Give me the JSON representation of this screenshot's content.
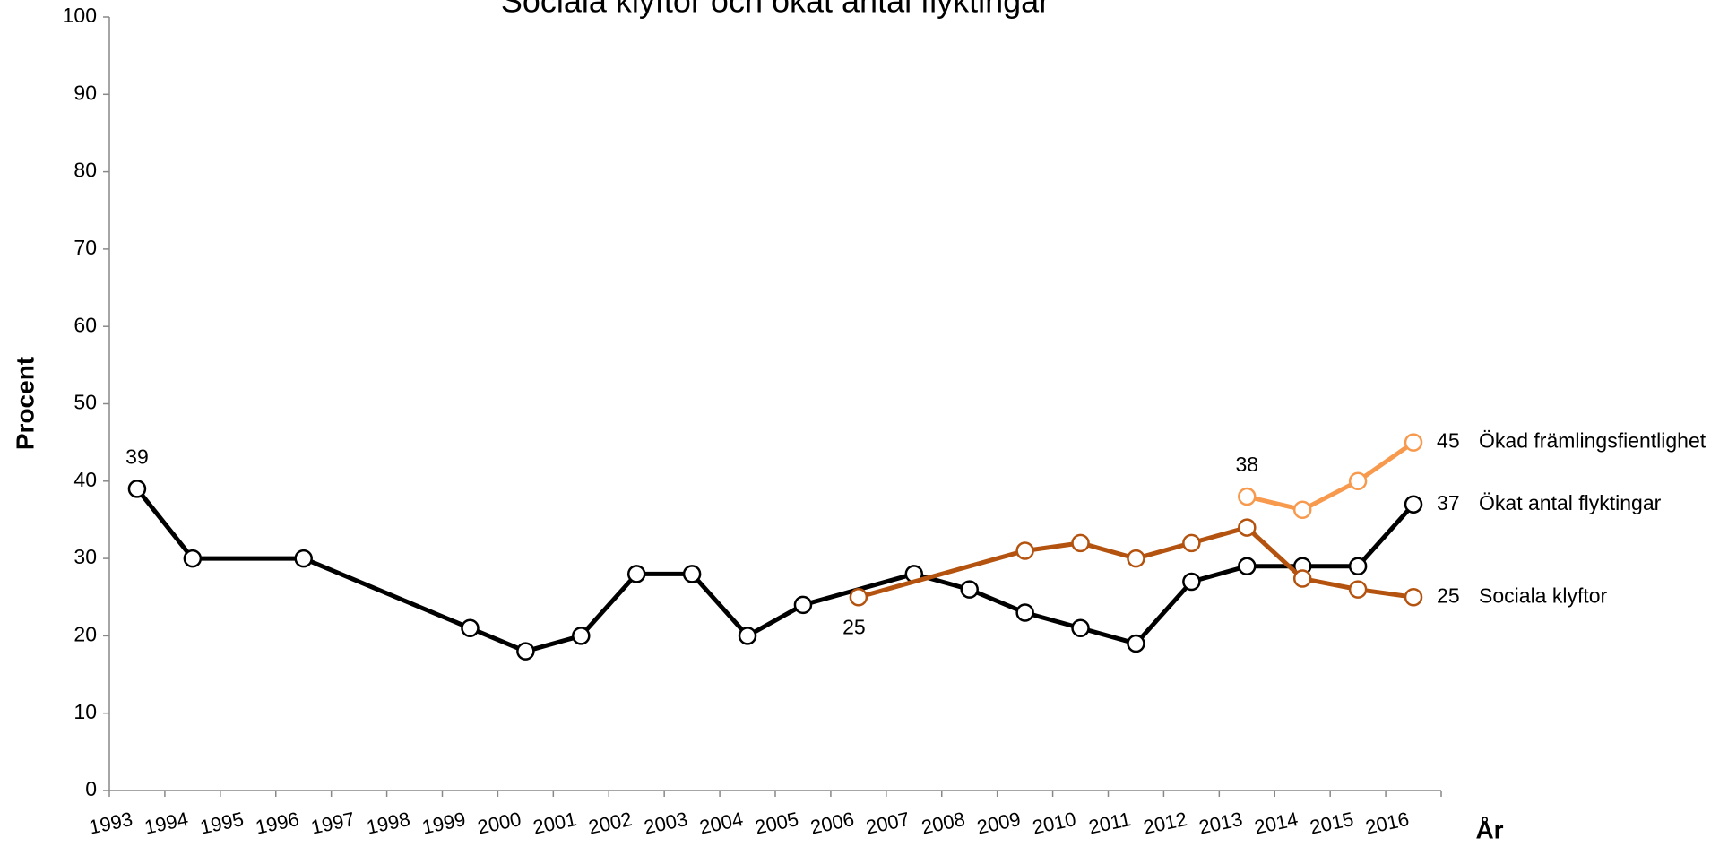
{
  "chart_data": {
    "type": "line",
    "title": "Sociala klyftor och ökat antal flyktingar",
    "y_label": "Procent",
    "x_label": "År",
    "categories": [
      "1993",
      "1994",
      "1995",
      "1996",
      "1997",
      "1998",
      "1999",
      "2000",
      "2001",
      "2002",
      "2003",
      "2004",
      "2005",
      "2006",
      "2007",
      "2008",
      "2009",
      "2010",
      "2011",
      "2012",
      "2013",
      "2014",
      "2015",
      "2016"
    ],
    "connect_gaps": true,
    "ylim": [
      0,
      100
    ],
    "yticks": [
      0,
      10,
      20,
      30,
      40,
      50,
      60,
      70,
      80,
      90,
      100
    ],
    "grid": false,
    "series": [
      {
        "name": "Ökad främlingsfientlighet",
        "color": "#f79a4e",
        "marker_fill": "#ffffff",
        "values": [
          null,
          null,
          null,
          null,
          null,
          null,
          null,
          null,
          null,
          null,
          null,
          null,
          null,
          null,
          null,
          null,
          null,
          null,
          null,
          null,
          38,
          36.3,
          40,
          45
        ],
        "value_labels": [
          null,
          null,
          null,
          null,
          null,
          null,
          null,
          null,
          null,
          null,
          null,
          null,
          null,
          null,
          null,
          null,
          null,
          null,
          null,
          null,
          "38",
          null,
          null,
          "45"
        ]
      },
      {
        "name": "Ökat antal flyktingar",
        "color": "#000000",
        "marker_fill": "#ffffff",
        "values": [
          39,
          30,
          null,
          30,
          null,
          null,
          21,
          18,
          20,
          28,
          28,
          20,
          24,
          null,
          28,
          26,
          23,
          21,
          19,
          27,
          29,
          29,
          29,
          37
        ],
        "value_labels": [
          "39",
          null,
          null,
          null,
          null,
          null,
          null,
          null,
          null,
          null,
          null,
          null,
          null,
          null,
          null,
          null,
          null,
          null,
          null,
          null,
          null,
          null,
          null,
          "37"
        ]
      },
      {
        "name": "Sociala klyftor",
        "color": "#b4530f",
        "marker_fill": "#ffffff",
        "values": [
          null,
          null,
          null,
          null,
          null,
          null,
          null,
          null,
          null,
          null,
          null,
          null,
          null,
          25,
          null,
          null,
          31,
          32,
          30,
          32,
          34,
          27.4,
          26,
          25
        ],
        "value_labels": [
          null,
          null,
          null,
          null,
          null,
          null,
          null,
          null,
          null,
          null,
          null,
          null,
          null,
          "25",
          null,
          null,
          null,
          null,
          null,
          null,
          null,
          null,
          null,
          "25"
        ]
      }
    ]
  }
}
